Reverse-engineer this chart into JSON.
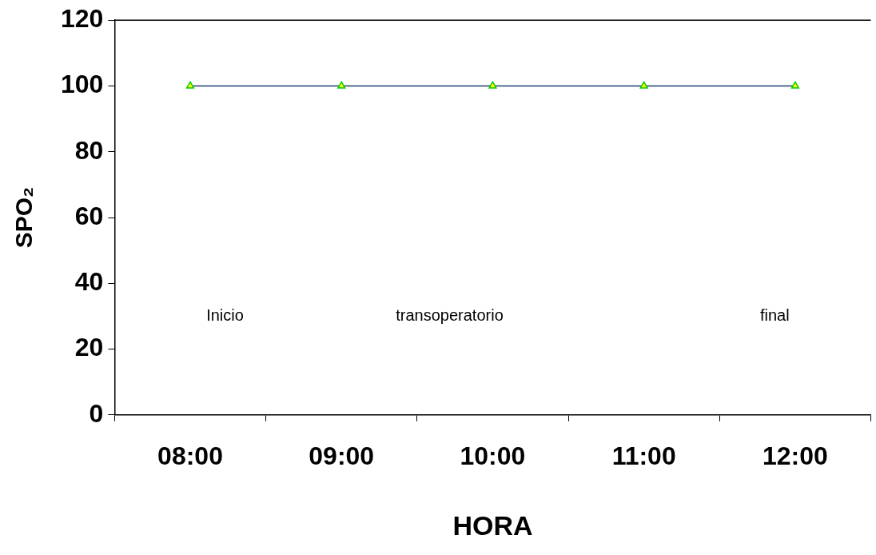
{
  "chart_data": {
    "type": "line",
    "xlabel": "HORA",
    "ylabel": "SPO₂",
    "categories": [
      "08:00",
      "09:00",
      "10:00",
      "11:00",
      "12:00"
    ],
    "series": [
      {
        "color": "#1f3f73",
        "values": [
          100,
          100,
          100,
          100,
          100
        ]
      }
    ],
    "ylim": [
      0,
      120
    ],
    "yticks": [
      0,
      20,
      40,
      60,
      80,
      100,
      120
    ],
    "marker": "triangle",
    "legend": false,
    "grid": false,
    "annotations": [
      "Inicio",
      "transoperatorio",
      "final"
    ]
  }
}
